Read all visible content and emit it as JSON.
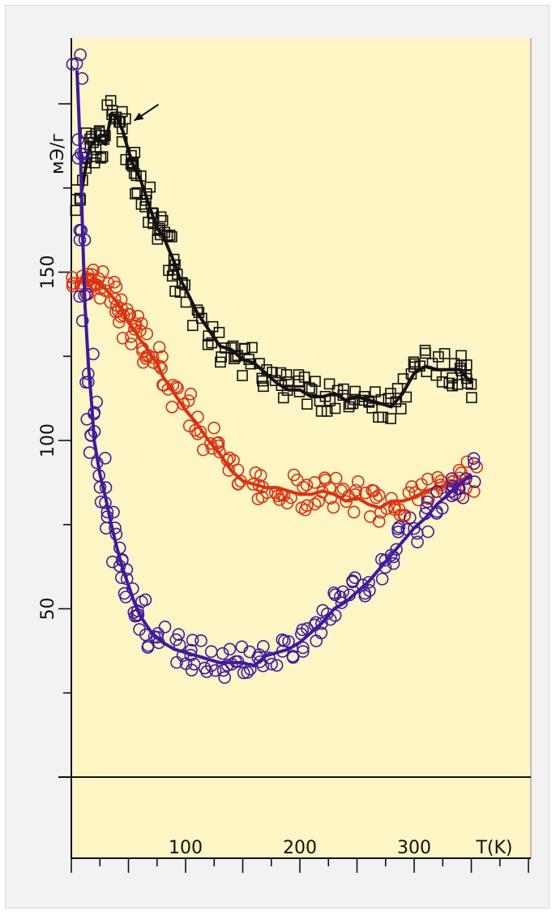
{
  "chart_data": {
    "type": "scatter",
    "xlabel": "T(K)",
    "ylabel": "мЭ/г",
    "x_ticks": [
      100,
      200,
      300
    ],
    "y_ticks": [
      50,
      100,
      150
    ],
    "xlim": [
      0,
      400
    ],
    "ylim": [
      -25,
      220
    ],
    "grid": false,
    "colors": {
      "background": "#fdf5c4",
      "axis": "#111111",
      "black_series": "#111111",
      "red_series": "#e03010",
      "purple_series": "#3f1aa0"
    },
    "annotations": [
      {
        "type": "arrow",
        "points_to": "peak of black series",
        "at": [
          55,
          195
        ]
      }
    ],
    "series": [
      {
        "marker": "square",
        "color": "#111111",
        "x": [
          8,
          12,
          16,
          20,
          25,
          30,
          35,
          40,
          45,
          50,
          55,
          60,
          65,
          70,
          75,
          80,
          85,
          90,
          95,
          100,
          110,
          120,
          130,
          140,
          150,
          160,
          170,
          180,
          190,
          200,
          210,
          220,
          230,
          240,
          250,
          260,
          270,
          280,
          290,
          300,
          310,
          320,
          330,
          340,
          345,
          350
        ],
        "y": [
          172,
          180,
          187,
          189,
          189,
          188,
          197,
          196,
          192,
          186,
          181,
          178,
          173,
          168,
          163,
          161,
          157,
          153,
          148,
          145,
          138,
          133,
          128,
          127,
          124,
          123,
          120,
          117,
          115,
          115,
          113,
          113,
          114,
          112,
          113,
          112,
          111,
          110,
          114,
          120,
          122,
          121,
          121,
          121,
          119,
          117
        ]
      },
      {
        "marker": "circle",
        "color": "#e03010",
        "x": [
          5,
          10,
          15,
          20,
          25,
          30,
          35,
          40,
          45,
          50,
          55,
          60,
          65,
          70,
          75,
          80,
          90,
          100,
          110,
          120,
          130,
          140,
          150,
          160,
          170,
          180,
          190,
          200,
          210,
          220,
          230,
          240,
          250,
          260,
          270,
          280,
          290,
          300,
          310,
          320,
          330,
          340,
          350
        ],
        "y": [
          145,
          149,
          147,
          148,
          146,
          145,
          143,
          141,
          138,
          135,
          133,
          130,
          128,
          125,
          123,
          119,
          114,
          109,
          105,
          100,
          96,
          91,
          88,
          87,
          86,
          86,
          85,
          84,
          84,
          85,
          84,
          82,
          83,
          81,
          80,
          82,
          82,
          83,
          85,
          86,
          87,
          88,
          89
        ]
      },
      {
        "marker": "circle",
        "color": "#3f1aa0",
        "x": [
          5,
          8,
          10,
          12,
          15,
          18,
          20,
          25,
          30,
          35,
          40,
          45,
          50,
          55,
          60,
          70,
          80,
          90,
          100,
          110,
          120,
          130,
          140,
          150,
          160,
          170,
          180,
          190,
          200,
          210,
          220,
          230,
          240,
          250,
          260,
          270,
          280,
          290,
          300,
          310,
          320,
          330,
          340,
          350
        ],
        "y": [
          210,
          185,
          160,
          140,
          122,
          110,
          100,
          90,
          83,
          75,
          68,
          62,
          57,
          52,
          48,
          43,
          40,
          38,
          37,
          36,
          35,
          34,
          34,
          34,
          33,
          36,
          37,
          38,
          40,
          43,
          46,
          50,
          52,
          55,
          58,
          62,
          66,
          70,
          74,
          77,
          81,
          84,
          87,
          90
        ]
      }
    ]
  }
}
